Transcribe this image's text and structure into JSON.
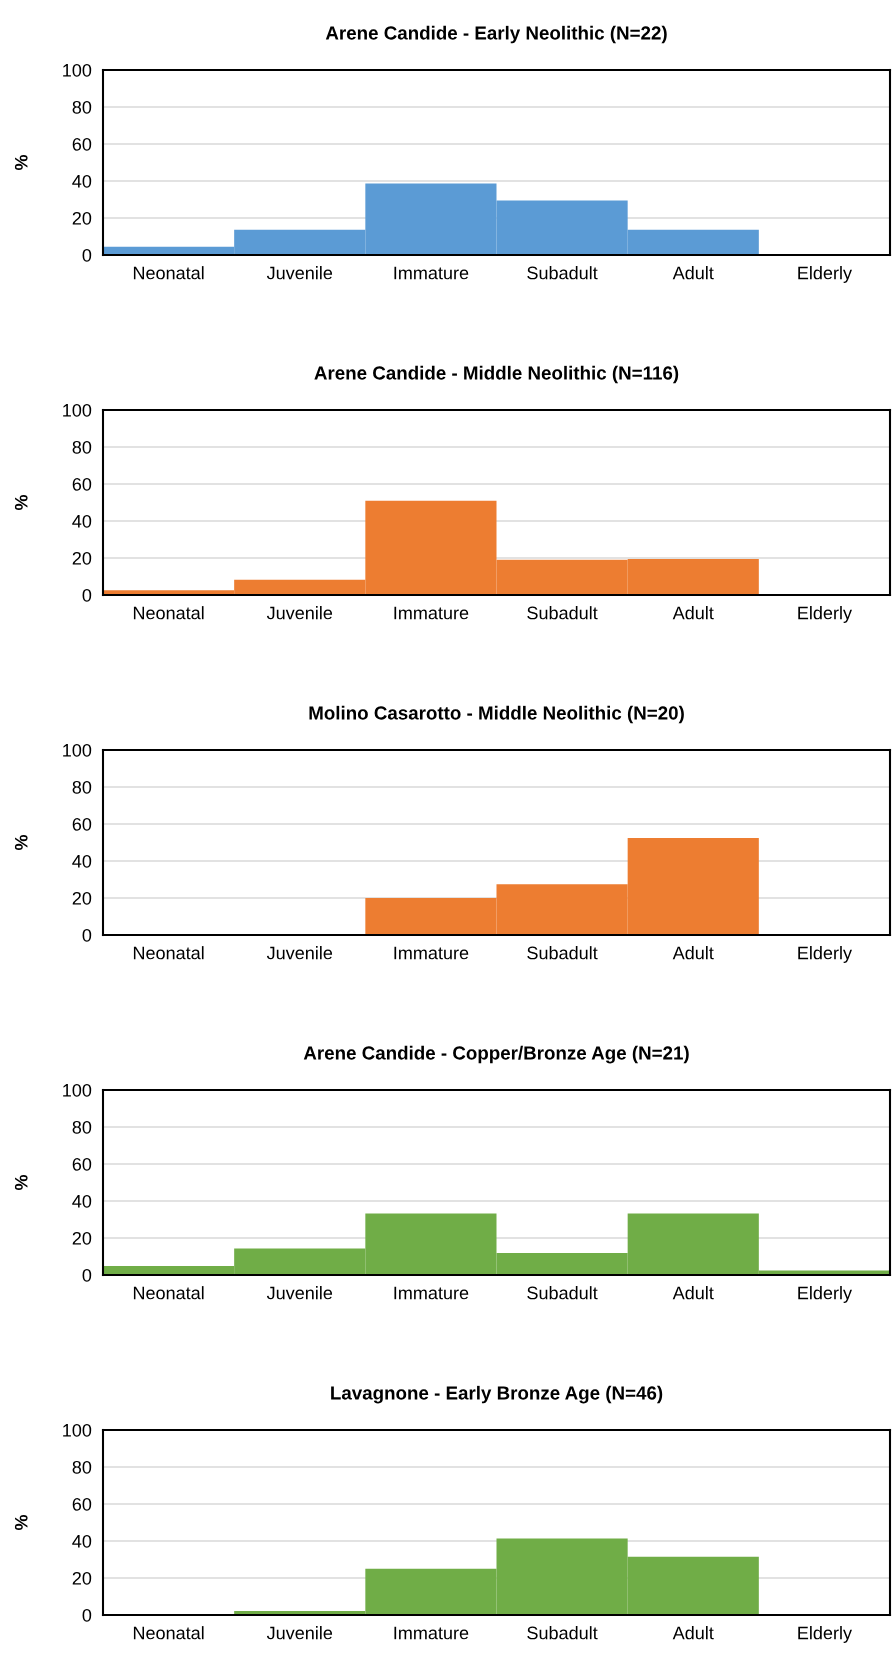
{
  "chart_data": [
    {
      "type": "bar",
      "title": "Arene Candide - Early Neolithic (N=22)",
      "ylabel": "%",
      "categories": [
        "Neonatal",
        "Juvenile",
        "Immature",
        "Subadult",
        "Adult",
        "Elderly"
      ],
      "color": "#5b9bd5",
      "values": [
        4.5,
        13.6,
        38.6,
        29.5,
        13.6,
        0
      ],
      "ylim": [
        0,
        100
      ],
      "yticks": [
        0,
        20,
        40,
        60,
        80,
        100
      ],
      "grid": "y"
    },
    {
      "type": "bar",
      "title": "Arene Candide - Middle Neolithic (N=116)",
      "ylabel": "%",
      "categories": [
        "Neonatal",
        "Juvenile",
        "Immature",
        "Subadult",
        "Adult",
        "Elderly"
      ],
      "color": "#ed7d31",
      "values": [
        2.6,
        8.2,
        50.9,
        19.0,
        19.4,
        0
      ],
      "ylim": [
        0,
        100
      ],
      "yticks": [
        0,
        20,
        40,
        60,
        80,
        100
      ],
      "grid": "y"
    },
    {
      "type": "bar",
      "title": "Molino Casarotto - Middle Neolithic (N=20)",
      "ylabel": "%",
      "categories": [
        "Neonatal",
        "Juvenile",
        "Immature",
        "Subadult",
        "Adult",
        "Elderly"
      ],
      "color": "#ed7d31",
      "values": [
        0,
        0,
        20,
        27.5,
        52.5,
        0
      ],
      "ylim": [
        0,
        100
      ],
      "yticks": [
        0,
        20,
        40,
        60,
        80,
        100
      ],
      "grid": "y"
    },
    {
      "type": "bar",
      "title": "Arene Candide - Copper/Bronze Age (N=21)",
      "ylabel": "%",
      "categories": [
        "Neonatal",
        "Juvenile",
        "Immature",
        "Subadult",
        "Adult",
        "Elderly"
      ],
      "color": "#70ad47",
      "values": [
        4.8,
        14.3,
        33.3,
        11.9,
        33.3,
        2.4
      ],
      "ylim": [
        0,
        100
      ],
      "yticks": [
        0,
        20,
        40,
        60,
        80,
        100
      ],
      "grid": "y"
    },
    {
      "type": "bar",
      "title": "Lavagnone - Early Bronze Age (N=46)",
      "ylabel": "%",
      "categories": [
        "Neonatal",
        "Juvenile",
        "Immature",
        "Subadult",
        "Adult",
        "Elderly"
      ],
      "color": "#70ad47",
      "values": [
        0,
        2.2,
        25.0,
        41.3,
        31.5,
        0
      ],
      "ylim": [
        0,
        100
      ],
      "yticks": [
        0,
        20,
        40,
        60,
        80,
        100
      ],
      "grid": "y"
    }
  ]
}
